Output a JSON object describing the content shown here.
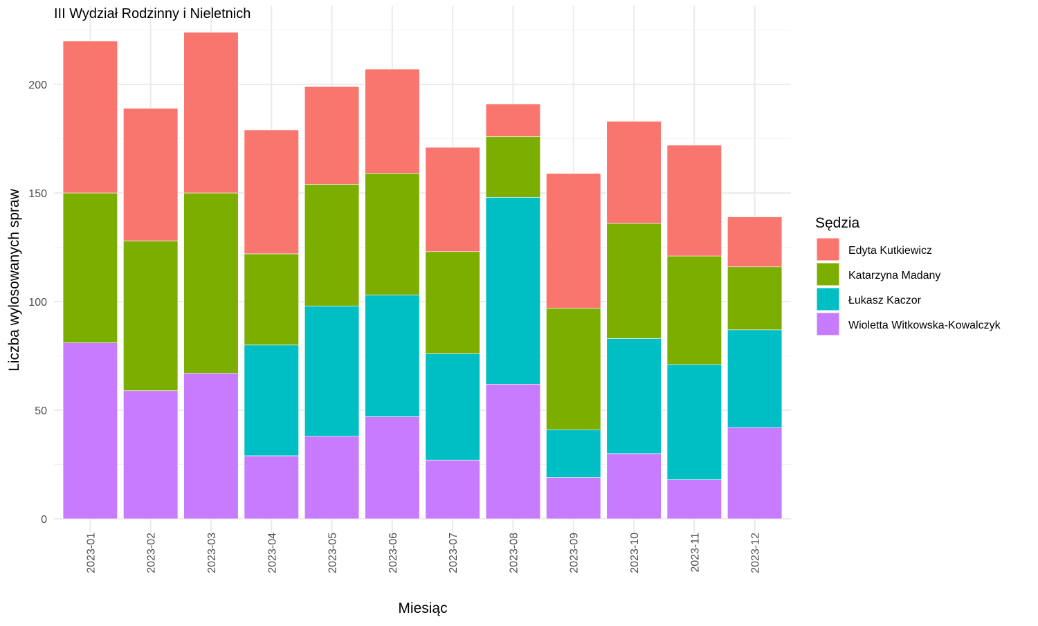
{
  "chart_data": {
    "type": "bar",
    "stacked": true,
    "title": "III Wydział Rodzinny i Nieletnich",
    "xlabel": "Miesiąc",
    "ylabel": "Liczba wylosowanych spraw",
    "ylim": [
      0,
      225
    ],
    "yticks": [
      0,
      50,
      100,
      150,
      200
    ],
    "grid": true,
    "legend_title": "Sędzia",
    "legend_position": "right",
    "categories": [
      "2023-01",
      "2023-02",
      "2023-03",
      "2023-04",
      "2023-05",
      "2023-06",
      "2023-07",
      "2023-08",
      "2023-09",
      "2023-10",
      "2023-11",
      "2023-12"
    ],
    "series": [
      {
        "name": "Wioletta Witkowska-Kowalczyk",
        "color": "#C77CFF",
        "values": [
          81,
          59,
          67,
          29,
          38,
          47,
          27,
          62,
          19,
          30,
          18,
          42
        ]
      },
      {
        "name": "Łukasz Kaczor",
        "color": "#00BFC4",
        "values": [
          0,
          0,
          0,
          51,
          60,
          56,
          49,
          86,
          22,
          53,
          53,
          45
        ]
      },
      {
        "name": "Katarzyna Madany",
        "color": "#7CAE00",
        "values": [
          69,
          69,
          83,
          42,
          56,
          56,
          47,
          28,
          56,
          53,
          50,
          29
        ]
      },
      {
        "name": "Edyta Kutkiewicz",
        "color": "#F8766D",
        "values": [
          70,
          61,
          74,
          57,
          45,
          48,
          48,
          15,
          62,
          47,
          51,
          23
        ]
      }
    ],
    "legend_order": [
      "Edyta Kutkiewicz",
      "Katarzyna Madany",
      "Łukasz Kaczor",
      "Wioletta Witkowska-Kowalczyk"
    ]
  }
}
